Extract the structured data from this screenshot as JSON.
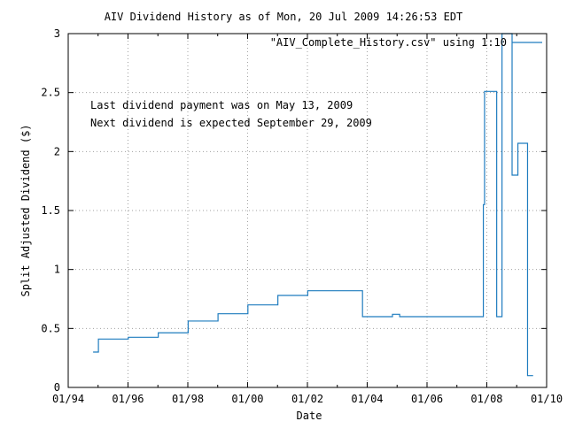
{
  "chart_data": {
    "type": "line",
    "title": "AIV Dividend History as of Mon, 20 Jul 2009 14:26:53 EDT",
    "xlabel": "Date",
    "ylabel": "Split Adjusted Dividend ($)",
    "xlim": [
      "1994-01-01",
      "2010-01-01"
    ],
    "ylim": [
      0,
      3
    ],
    "x_ticks": [
      {
        "date": "1994-01-01",
        "label": "01/94"
      },
      {
        "date": "1996-01-01",
        "label": "01/96"
      },
      {
        "date": "1998-01-01",
        "label": "01/98"
      },
      {
        "date": "2000-01-01",
        "label": "01/00"
      },
      {
        "date": "2002-01-01",
        "label": "01/02"
      },
      {
        "date": "2004-01-01",
        "label": "01/04"
      },
      {
        "date": "2006-01-01",
        "label": "01/06"
      },
      {
        "date": "2008-01-01",
        "label": "01/08"
      },
      {
        "date": "2010-01-01",
        "label": "01/10"
      }
    ],
    "y_ticks": [
      {
        "value": 0,
        "label": "0"
      },
      {
        "value": 0.5,
        "label": "0.5"
      },
      {
        "value": 1,
        "label": "1"
      },
      {
        "value": 1.5,
        "label": "1.5"
      },
      {
        "value": 2,
        "label": "2"
      },
      {
        "value": 2.5,
        "label": "2.5"
      },
      {
        "value": 3,
        "label": "3"
      }
    ],
    "grid": true,
    "legend_position": "top-right",
    "annotations": [
      "Last dividend payment was on May 13, 2009",
      "Next dividend is expected September 29, 2009"
    ],
    "series": [
      {
        "name": "\"AIV_Complete_History.csv\" using 1:10",
        "color": "#1f7cbf",
        "step": true,
        "points": [
          {
            "x": "1994-11-01",
            "y": 0.3
          },
          {
            "x": "1995-01-05",
            "y": 0.41
          },
          {
            "x": "1996-01-05",
            "y": 0.425
          },
          {
            "x": "1997-01-05",
            "y": 0.463
          },
          {
            "x": "1998-01-05",
            "y": 0.563
          },
          {
            "x": "1999-01-05",
            "y": 0.625
          },
          {
            "x": "2000-01-05",
            "y": 0.7
          },
          {
            "x": "2001-01-05",
            "y": 0.78
          },
          {
            "x": "2002-01-05",
            "y": 0.82
          },
          {
            "x": "2003-11-05",
            "y": 0.6
          },
          {
            "x": "2004-11-05",
            "y": 0.62
          },
          {
            "x": "2005-02-01",
            "y": 0.6
          },
          {
            "x": "2007-11-20",
            "y": 1.55
          },
          {
            "x": "2007-12-05",
            "y": 2.51
          },
          {
            "x": "2008-05-01",
            "y": 0.6
          },
          {
            "x": "2008-07-05",
            "y": 3.0
          },
          {
            "x": "2008-11-05",
            "y": 1.8
          },
          {
            "x": "2009-01-15",
            "y": 2.07
          },
          {
            "x": "2009-05-13",
            "y": 0.1
          },
          {
            "x": "2009-07-20",
            "y": 0.1
          }
        ]
      }
    ]
  }
}
